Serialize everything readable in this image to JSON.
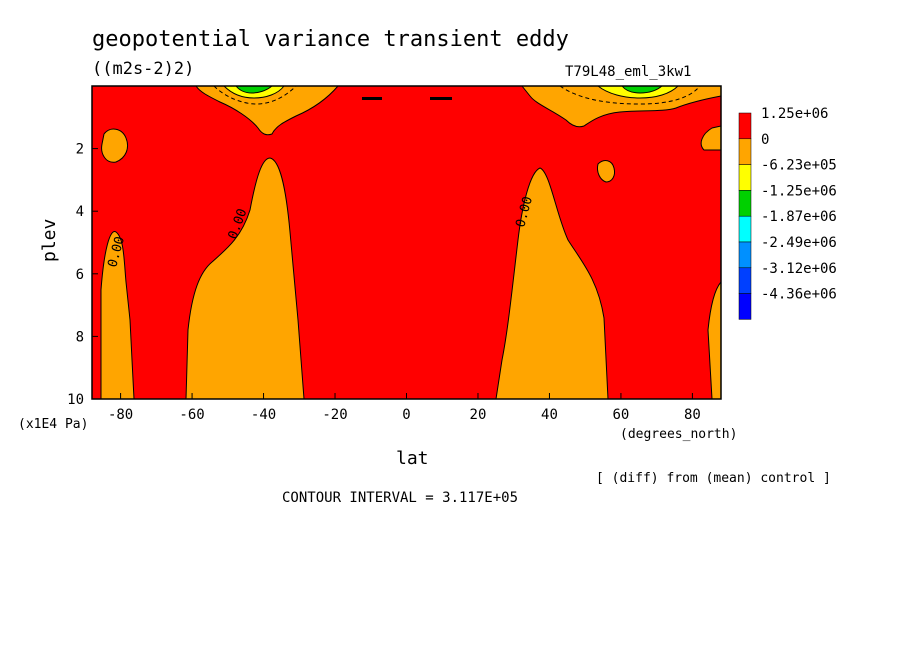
{
  "chart_data": {
    "type": "contour",
    "title": "geopotential variance transient eddy",
    "units": "((m2s-2)2)",
    "run_label": "T79L48_eml_3kw1",
    "xlabel": "lat",
    "xunits": "(degrees_north)",
    "ylabel": "plev",
    "yunits": "(x1E4 Pa)",
    "xlim": [
      -88,
      88
    ],
    "ylim": [
      10,
      0
    ],
    "xticks": [
      "-80",
      "-60",
      "-40",
      "-20",
      "0",
      "20",
      "40",
      "60",
      "80"
    ],
    "yticks": [
      "2",
      "4",
      "6",
      "8",
      "10"
    ],
    "contour_label": "0.00",
    "contour_interval_text": "CONTOUR INTERVAL = 3.117E+05",
    "footnote": "[ (diff) from (mean) control ]",
    "legend": [
      {
        "label": "1.25e+06",
        "color": "#ff0000"
      },
      {
        "label": "0",
        "color": "#ffa500"
      },
      {
        "label": "-6.23e+05",
        "color": "#ffff00"
      },
      {
        "label": "-1.25e+06",
        "color": "#00d000"
      },
      {
        "label": "-1.87e+06",
        "color": "#00ffff"
      },
      {
        "label": "-2.49e+06",
        "color": "#0090ff"
      },
      {
        "label": "-3.12e+06",
        "color": "#0040ff"
      },
      {
        "label": "-4.36e+06",
        "color": "#0000ff"
      }
    ],
    "background_color": "#ff0000",
    "negative_color": "#ffa500"
  }
}
